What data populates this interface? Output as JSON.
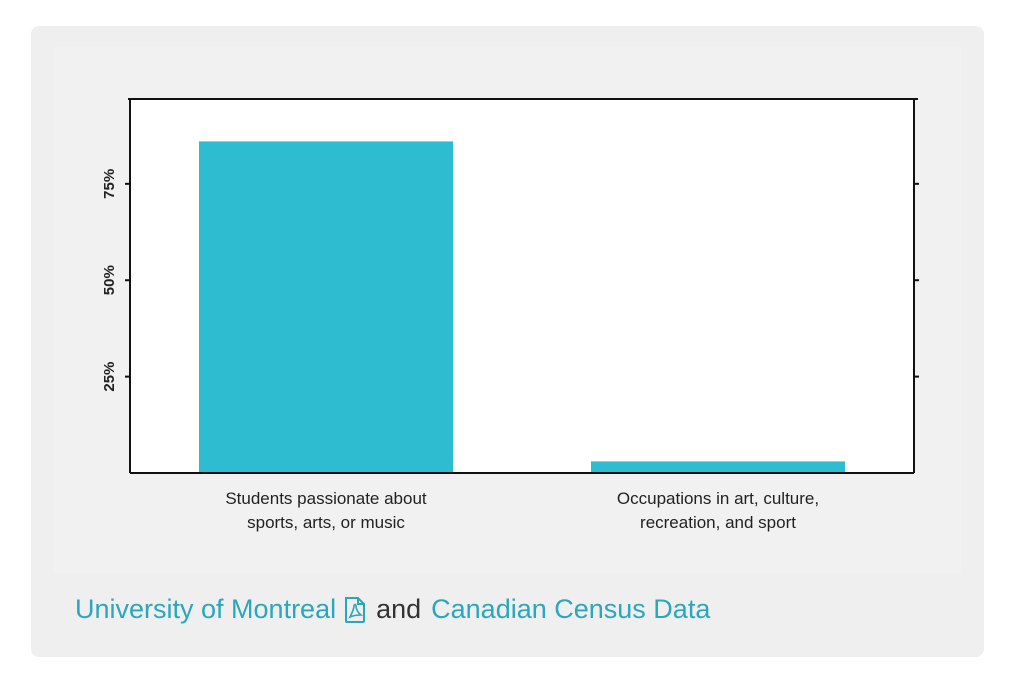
{
  "chart_data": {
    "type": "bar",
    "categories": [
      [
        "Students passionate about",
        "sports, arts, or music"
      ],
      [
        "Occupations in art, culture,",
        "recreation, and sport"
      ]
    ],
    "values": [
      86,
      3
    ],
    "yticks": [
      25,
      50,
      75
    ],
    "ytick_labels": [
      "25%",
      "50%",
      "75%"
    ],
    "ylim": [
      0,
      97
    ],
    "bar_color": "#2ebcd1",
    "grid": false
  },
  "caption": {
    "source1": "University of Montreal",
    "source1_icon": "pdf-icon",
    "connector": "and",
    "source2": "Canadian Census Data",
    "link_color": "#2aa6bf"
  }
}
